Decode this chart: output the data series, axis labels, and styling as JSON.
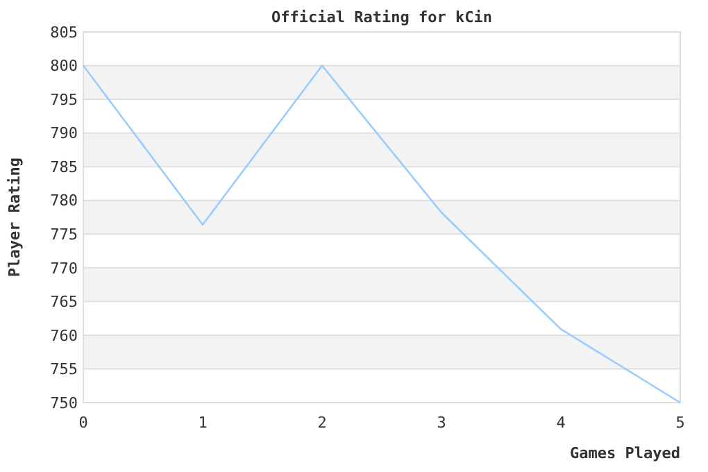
{
  "chart_data": {
    "type": "line",
    "title": "Official Rating for kCin",
    "xlabel": "Games Played",
    "ylabel": "Player Rating",
    "x": [
      0,
      1,
      2,
      3,
      4,
      5
    ],
    "series": [
      {
        "color": "#99ccff",
        "values": [
          800,
          776.4,
          800,
          778.2,
          760.9,
          750
        ]
      }
    ],
    "xlim": [
      0,
      5
    ],
    "xticks": [
      0,
      1,
      2,
      3,
      4,
      5
    ],
    "ylim": [
      750,
      805
    ],
    "yticks": [
      750,
      755,
      760,
      765,
      770,
      775,
      780,
      785,
      790,
      795,
      800,
      805
    ],
    "grid": "y",
    "marker": "none",
    "line_style": "solid"
  }
}
